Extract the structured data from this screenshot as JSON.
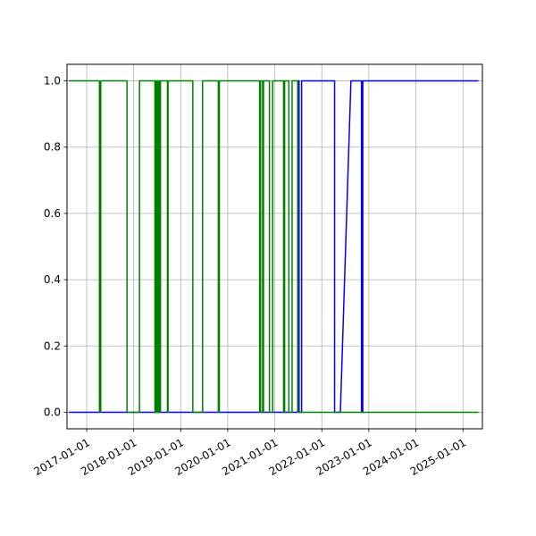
{
  "chart_data": {
    "type": "line",
    "title": "",
    "xlabel": "",
    "ylabel": "",
    "x_axis": "date",
    "xlim": [
      "2016-08-01",
      "2025-06-01"
    ],
    "ylim": [
      -0.05,
      1.05
    ],
    "grid": true,
    "legend": "none",
    "x_ticks": [
      "2017-01-01",
      "2018-01-01",
      "2019-01-01",
      "2020-01-01",
      "2021-01-01",
      "2022-01-01",
      "2023-01-01",
      "2024-01-01",
      "2025-01-01"
    ],
    "y_ticks": [
      0.0,
      0.2,
      0.4,
      0.6,
      0.8,
      1.0
    ],
    "y_tick_labels": [
      "0.0",
      "0.2",
      "0.4",
      "0.6",
      "0.8",
      "1.0"
    ],
    "series": [
      {
        "color": "#0000ff",
        "points": [
          [
            "2016-08-15",
            0
          ],
          [
            "2021-06-28",
            0
          ],
          [
            "2021-06-28",
            1
          ],
          [
            "2021-07-08",
            1
          ],
          [
            "2021-07-08",
            0
          ],
          [
            "2021-07-28",
            0
          ],
          [
            "2021-07-28",
            1
          ],
          [
            "2022-04-10",
            1
          ],
          [
            "2022-04-10",
            0
          ],
          [
            "2022-05-25",
            0
          ],
          [
            "2022-08-15",
            1
          ],
          [
            "2022-11-05",
            1
          ],
          [
            "2022-11-05",
            0
          ],
          [
            "2022-11-15",
            0
          ],
          [
            "2022-11-15",
            1
          ],
          [
            "2025-05-01",
            1
          ]
        ]
      },
      {
        "color": "#008000",
        "points": [
          [
            "2016-08-15",
            1
          ],
          [
            "2017-04-10",
            1
          ],
          [
            "2017-04-10",
            0
          ],
          [
            "2017-04-20",
            0
          ],
          [
            "2017-04-20",
            1
          ],
          [
            "2017-11-10",
            1
          ],
          [
            "2017-11-10",
            0
          ],
          [
            "2018-02-15",
            0
          ],
          [
            "2018-02-15",
            1
          ],
          [
            "2018-06-15",
            1
          ],
          [
            "2018-06-15",
            0
          ],
          [
            "2018-06-18",
            0
          ],
          [
            "2018-06-18",
            1
          ],
          [
            "2018-06-22",
            1
          ],
          [
            "2018-06-22",
            0
          ],
          [
            "2018-06-26",
            0
          ],
          [
            "2018-06-26",
            1
          ],
          [
            "2018-07-01",
            1
          ],
          [
            "2018-07-01",
            0
          ],
          [
            "2018-07-04",
            0
          ],
          [
            "2018-07-04",
            1
          ],
          [
            "2018-07-08",
            1
          ],
          [
            "2018-07-08",
            0
          ],
          [
            "2018-07-12",
            0
          ],
          [
            "2018-07-12",
            1
          ],
          [
            "2018-07-16",
            1
          ],
          [
            "2018-07-16",
            0
          ],
          [
            "2018-07-20",
            0
          ],
          [
            "2018-07-20",
            1
          ],
          [
            "2018-07-24",
            1
          ],
          [
            "2018-07-24",
            0
          ],
          [
            "2018-07-28",
            0
          ],
          [
            "2018-07-28",
            1
          ],
          [
            "2018-09-20",
            1
          ],
          [
            "2018-09-20",
            0
          ],
          [
            "2018-09-25",
            0
          ],
          [
            "2018-09-25",
            1
          ],
          [
            "2019-04-05",
            1
          ],
          [
            "2019-04-05",
            0
          ],
          [
            "2019-06-20",
            0
          ],
          [
            "2019-06-20",
            1
          ],
          [
            "2019-10-20",
            1
          ],
          [
            "2019-10-20",
            0
          ],
          [
            "2019-10-28",
            0
          ],
          [
            "2019-10-28",
            1
          ],
          [
            "2020-09-05",
            1
          ],
          [
            "2020-09-05",
            0
          ],
          [
            "2020-09-12",
            0
          ],
          [
            "2020-09-12",
            1
          ],
          [
            "2020-09-28",
            1
          ],
          [
            "2020-09-28",
            0
          ],
          [
            "2020-10-05",
            0
          ],
          [
            "2020-10-05",
            1
          ],
          [
            "2020-11-20",
            1
          ],
          [
            "2020-11-20",
            0
          ],
          [
            "2020-12-15",
            0
          ],
          [
            "2020-12-15",
            1
          ],
          [
            "2021-03-10",
            1
          ],
          [
            "2021-03-10",
            0
          ],
          [
            "2021-03-18",
            0
          ],
          [
            "2021-03-18",
            1
          ],
          [
            "2021-04-20",
            1
          ],
          [
            "2021-04-20",
            0
          ],
          [
            "2021-05-15",
            0
          ],
          [
            "2021-05-15",
            1
          ],
          [
            "2021-06-28",
            1
          ],
          [
            "2021-06-28",
            0
          ],
          [
            "2025-05-01",
            0
          ]
        ]
      }
    ]
  }
}
